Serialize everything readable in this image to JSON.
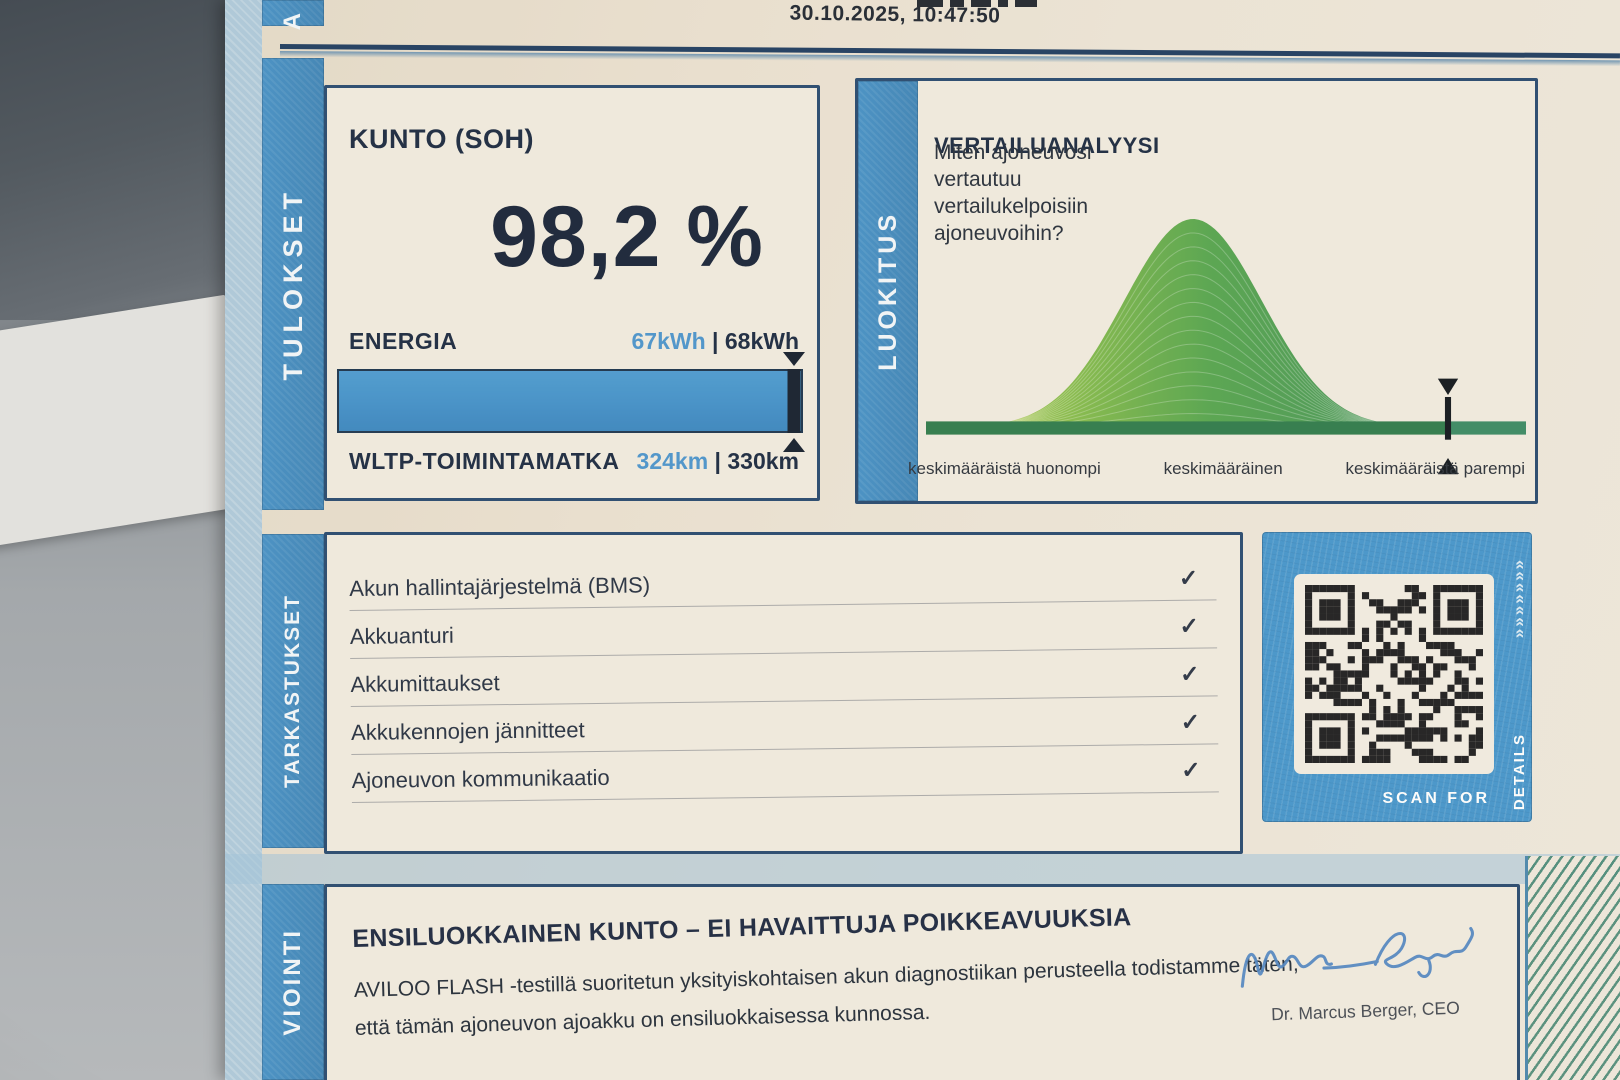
{
  "meta": {
    "timestamp": "30.10.2025, 10:47:50",
    "partial_top_label": "A"
  },
  "tabs": {
    "results": "TULOKSET",
    "rating": "LUOKITUS",
    "inspections": "TARKASTUKSET",
    "assessment": "VIOINTI"
  },
  "results_panel": {
    "title": "KUNTO (SOH)",
    "soh_value": "98,2 %",
    "energy": {
      "label": "ENERGIA",
      "current": "67kWh",
      "separator": "|",
      "total": "68kWh",
      "percent": 98.5
    },
    "wltp": {
      "label": "WLTP-TOIMINTAMATKA",
      "current": "324km",
      "separator": "|",
      "total": "330km"
    }
  },
  "comparison_panel": {
    "title": "VERTAILUANALYYSI",
    "question": "Miten ajoneuvosi vertautuu vertailukelpoisiin ajoneuvoihin?",
    "axis_labels": [
      "keskimääräistä huonompi",
      "keskimääräinen",
      "keskimääräistä parempi"
    ]
  },
  "chart_data": {
    "type": "area",
    "title": "VERTAILUANALYYSI",
    "description": "Bell-curve distribution of comparable vehicles; marker shows this vehicle near the better-than-average end",
    "curve": {
      "shape": "gaussian",
      "peak_x_pct": 44.5,
      "sigma_pct": 11.5
    },
    "marker_x_pct": 87,
    "x_axis_labels": [
      "keskimääräistä huonompi",
      "keskimääräinen",
      "keskimääräistä parempi"
    ],
    "gradient_colors": [
      "#d9d23e",
      "#8fbf4a",
      "#54a44e",
      "#3d8a5f"
    ],
    "baseline_color": "#2e7b4b",
    "marker_color": "#10161c"
  },
  "checklist": {
    "check_glyph": "✓",
    "items": [
      {
        "label": "Akun hallintajärjestelmä (BMS)",
        "checked": true
      },
      {
        "label": "Akkuanturi",
        "checked": true
      },
      {
        "label": "Akkumittaukset",
        "checked": true
      },
      {
        "label": "Akkukennojen jännitteet",
        "checked": true
      },
      {
        "label": "Ajoneuvon kommunikaatio",
        "checked": true
      }
    ]
  },
  "qr_panel": {
    "scan_text": "SCAN FOR",
    "details_text": "DETAILS",
    "chevrons": "»»»»»»»"
  },
  "verdict_panel": {
    "heading": "ENSILUOKKAINEN KUNTO – EI HAVAITTUJA POIKKEAVUUKSIA",
    "body_line1": "AVILOO FLASH -testillä suoritetun yksityiskohtaisen akun diagnostiikan perusteella todistamme täten,",
    "body_line2": "että tämän ajoneuvon ajoakku on ensiluokkaisessa kunnossa.",
    "signature_caption": "Dr. Marcus Berger, CEO"
  },
  "colors": {
    "accent_blue": "#4193cb",
    "navy": "#1c2b45",
    "value_blue": "#4b94cd",
    "paper": "#eae2d4",
    "signature_ink": "#4e84c2"
  }
}
